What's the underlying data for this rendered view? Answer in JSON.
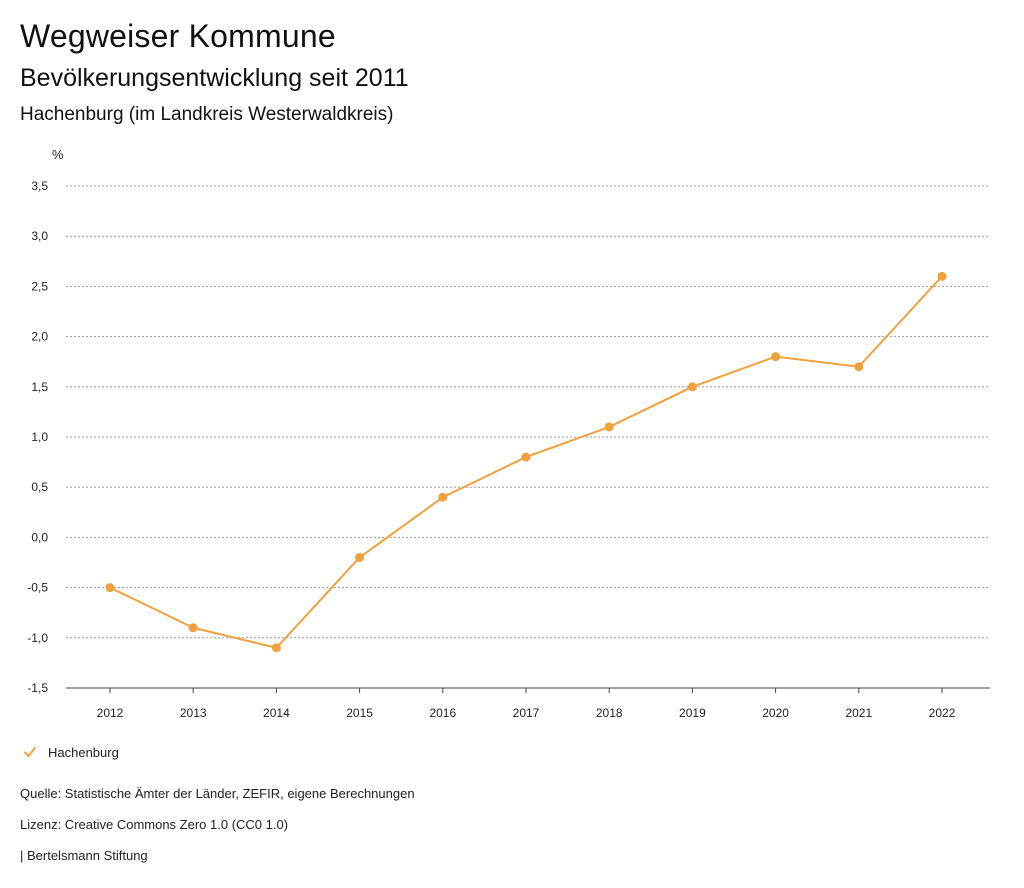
{
  "header": {
    "title": "Wegweiser Kommune",
    "subtitle": "Bevölkerungsentwicklung seit 2011",
    "region": "Hachenburg (im Landkreis Westerwaldkreis)"
  },
  "chart_data": {
    "type": "line",
    "y_unit_label": "%",
    "x": [
      "2012",
      "2013",
      "2014",
      "2015",
      "2016",
      "2017",
      "2018",
      "2019",
      "2020",
      "2021",
      "2022"
    ],
    "series": [
      {
        "name": "Hachenburg",
        "color": "#f0a03c",
        "values": [
          -0.5,
          -0.9,
          -1.1,
          -0.2,
          0.4,
          0.8,
          1.1,
          1.5,
          1.8,
          1.7,
          2.6
        ]
      }
    ],
    "yticks": [
      "3,5",
      "3,0",
      "2,5",
      "2,0",
      "1,5",
      "1,0",
      "0,5",
      "0,0",
      "-0,5",
      "-1,0",
      "-1,5"
    ],
    "ylim": [
      -1.5,
      3.5
    ],
    "grid": true,
    "legend_position": "bottom-left"
  },
  "legend": {
    "label": "Hachenburg",
    "icon": "checkmark-icon"
  },
  "footer": {
    "source": "Quelle: Statistische Ämter der Länder, ZEFIR, eigene Berechnungen",
    "license": "Lizenz: Creative Commons Zero 1.0 (CC0 1.0)",
    "publisher": "| Bertelsmann Stiftung"
  }
}
